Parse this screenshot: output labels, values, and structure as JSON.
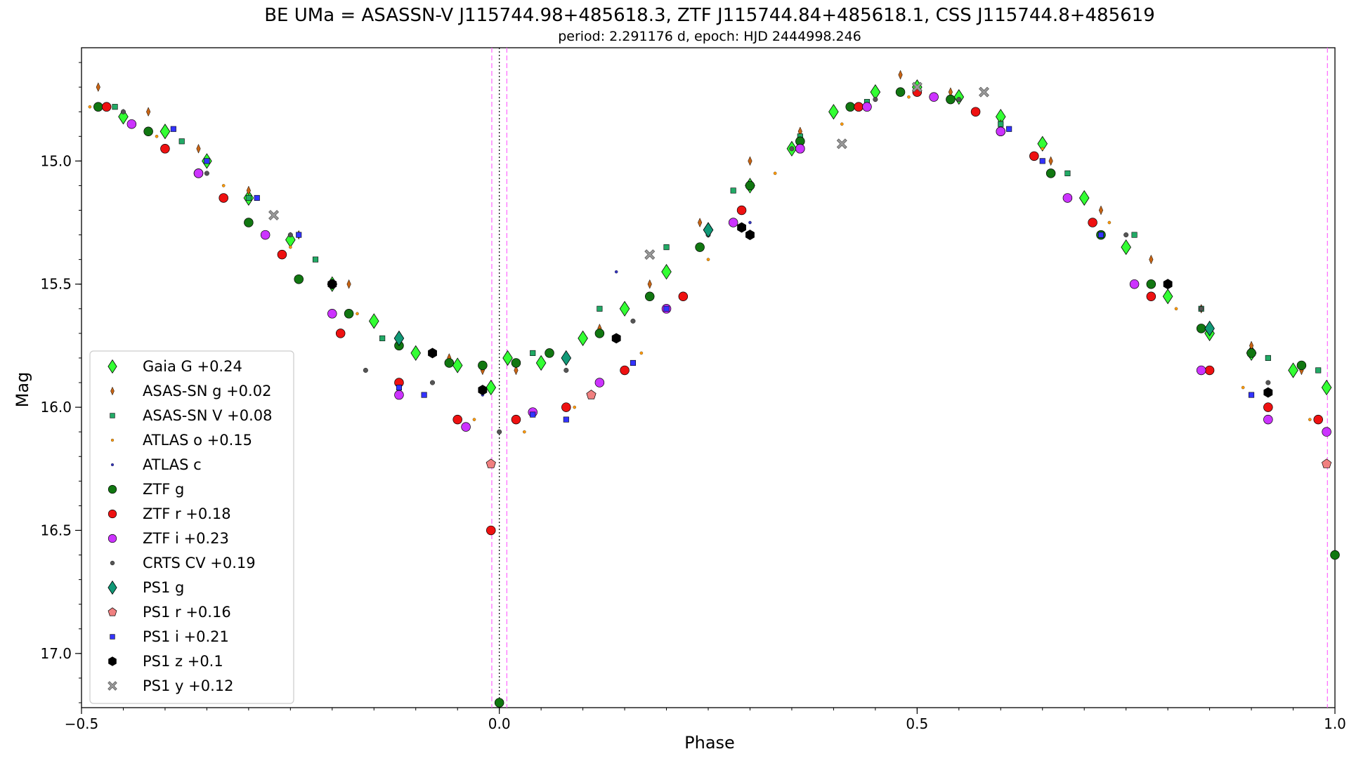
{
  "chart_data": {
    "type": "scatter",
    "title": "BE UMa = ASASSN-V J115744.98+485618.3, ZTF J115744.84+485618.1, CSS J115744.8+485619",
    "subtitle": "period: 2.291176 d, epoch: HJD 2444998.246",
    "xlabel": "Phase",
    "ylabel": "Mag",
    "xlim": [
      -0.5,
      1.0
    ],
    "ylim": [
      17.22,
      14.54
    ],
    "y_inverted": true,
    "x_ticks": [
      {
        "value": -0.5,
        "label": "−0.5"
      },
      {
        "value": 0.0,
        "label": "0.0"
      },
      {
        "value": 0.5,
        "label": "0.5"
      },
      {
        "value": 1.0,
        "label": "1.0"
      }
    ],
    "y_ticks": [
      {
        "value": 15.0,
        "label": "15.0"
      },
      {
        "value": 15.5,
        "label": "15.5"
      },
      {
        "value": 16.0,
        "label": "16.0"
      },
      {
        "value": 16.5,
        "label": "16.5"
      },
      {
        "value": 17.0,
        "label": "17.0"
      }
    ],
    "vertical_lines": [
      {
        "x": 0.0,
        "color": "#000000",
        "style": "dotted"
      },
      {
        "x": -0.009,
        "color": "#ff66ff",
        "style": "dashed"
      },
      {
        "x": 0.009,
        "color": "#ff66ff",
        "style": "dashed"
      },
      {
        "x": 0.991,
        "color": "#ff66ff",
        "style": "dashed"
      }
    ],
    "grid": false,
    "legend_position": "lower-left",
    "series": [
      {
        "name": "Gaia G +0.24",
        "marker": "diamond",
        "color": "#33ff33",
        "x": [
          -0.45,
          -0.4,
          -0.35,
          -0.3,
          -0.25,
          -0.2,
          -0.15,
          -0.1,
          -0.05,
          -0.01,
          0.01,
          0.05,
          0.1,
          0.15,
          0.2,
          0.25,
          0.3,
          0.35,
          0.4,
          0.45,
          0.5,
          0.55,
          0.6,
          0.65,
          0.7,
          0.75,
          0.8,
          0.85,
          0.9,
          0.95,
          0.99
        ],
        "y": [
          14.82,
          14.88,
          15.0,
          15.15,
          15.32,
          15.5,
          15.65,
          15.78,
          15.83,
          15.92,
          15.8,
          15.82,
          15.72,
          15.6,
          15.45,
          15.28,
          15.1,
          14.95,
          14.8,
          14.72,
          14.7,
          14.74,
          14.82,
          14.93,
          15.15,
          15.35,
          15.55,
          15.7,
          15.78,
          15.85,
          15.92
        ]
      },
      {
        "name": "ASAS-SN g +0.02",
        "marker": "thin-diamond",
        "color": "#c86414",
        "x": [
          -0.48,
          -0.42,
          -0.36,
          -0.3,
          -0.24,
          -0.18,
          -0.12,
          -0.06,
          -0.02,
          0.02,
          0.06,
          0.12,
          0.18,
          0.24,
          0.3,
          0.36,
          0.42,
          0.48,
          0.54,
          0.6,
          0.66,
          0.72,
          0.78,
          0.84,
          0.9,
          0.96
        ],
        "y": [
          14.7,
          14.8,
          14.95,
          15.12,
          15.3,
          15.5,
          15.72,
          15.8,
          15.85,
          15.85,
          15.78,
          15.68,
          15.5,
          15.25,
          15.0,
          14.88,
          14.78,
          14.65,
          14.72,
          14.85,
          15.0,
          15.2,
          15.4,
          15.6,
          15.75,
          15.85
        ]
      },
      {
        "name": "ASAS-SN V +0.08",
        "marker": "square",
        "color": "#22aa66",
        "x": [
          -0.46,
          -0.38,
          -0.3,
          -0.22,
          -0.14,
          -0.06,
          0.04,
          0.12,
          0.2,
          0.28,
          0.36,
          0.44,
          0.52,
          0.6,
          0.68,
          0.76,
          0.84,
          0.92,
          0.98
        ],
        "y": [
          14.78,
          14.92,
          15.15,
          15.4,
          15.72,
          15.82,
          15.78,
          15.6,
          15.35,
          15.12,
          14.9,
          14.76,
          14.74,
          14.85,
          15.05,
          15.3,
          15.6,
          15.8,
          15.85
        ]
      },
      {
        "name": "ATLAS o +0.15",
        "marker": "point",
        "color": "#ff9900",
        "x": [
          -0.49,
          -0.41,
          -0.33,
          -0.25,
          -0.17,
          -0.09,
          -0.03,
          0.03,
          0.09,
          0.17,
          0.25,
          0.33,
          0.41,
          0.49,
          0.57,
          0.65,
          0.73,
          0.81,
          0.89,
          0.97
        ],
        "y": [
          14.78,
          14.9,
          15.1,
          15.35,
          15.62,
          15.95,
          16.05,
          16.1,
          16.0,
          15.78,
          15.4,
          15.05,
          14.85,
          14.74,
          14.8,
          14.95,
          15.25,
          15.6,
          15.92,
          16.05
        ]
      },
      {
        "name": "ATLAS c",
        "marker": "point",
        "color": "#3333bb",
        "x": [
          -0.02,
          0.14,
          0.3
        ],
        "y": [
          15.95,
          15.45,
          15.25
        ]
      },
      {
        "name": "ZTF g",
        "marker": "circle",
        "color": "#117711",
        "x": [
          -0.48,
          -0.42,
          -0.36,
          -0.3,
          -0.24,
          -0.18,
          -0.12,
          -0.06,
          -0.02,
          0.0,
          0.02,
          0.06,
          0.12,
          0.18,
          0.24,
          0.3,
          0.36,
          0.42,
          0.48,
          0.54,
          0.6,
          0.66,
          0.72,
          0.78,
          0.84,
          0.9,
          0.96,
          1.0
        ],
        "y": [
          14.78,
          14.88,
          15.05,
          15.25,
          15.48,
          15.62,
          15.75,
          15.82,
          15.83,
          17.2,
          15.82,
          15.78,
          15.7,
          15.55,
          15.35,
          15.1,
          14.92,
          14.78,
          14.72,
          14.75,
          14.88,
          15.05,
          15.3,
          15.5,
          15.68,
          15.78,
          15.83,
          16.6
        ]
      },
      {
        "name": "ZTF r +0.18",
        "marker": "circle",
        "color": "#ee1111",
        "x": [
          -0.47,
          -0.4,
          -0.33,
          -0.26,
          -0.19,
          -0.12,
          -0.05,
          -0.01,
          0.02,
          0.08,
          0.15,
          0.22,
          0.29,
          0.36,
          0.43,
          0.5,
          0.57,
          0.64,
          0.71,
          0.78,
          0.85,
          0.92,
          0.98
        ],
        "y": [
          14.78,
          14.95,
          15.15,
          15.38,
          15.7,
          15.9,
          16.05,
          16.5,
          16.05,
          16.0,
          15.85,
          15.55,
          15.2,
          14.95,
          14.78,
          14.72,
          14.8,
          14.98,
          15.25,
          15.55,
          15.85,
          16.0,
          16.05
        ]
      },
      {
        "name": "ZTF i +0.23",
        "marker": "circle",
        "color": "#cc33ff",
        "x": [
          -0.44,
          -0.36,
          -0.28,
          -0.2,
          -0.12,
          -0.04,
          0.04,
          0.12,
          0.2,
          0.28,
          0.36,
          0.44,
          0.52,
          0.6,
          0.68,
          0.76,
          0.84,
          0.92,
          0.99
        ],
        "y": [
          14.85,
          15.05,
          15.3,
          15.62,
          15.95,
          16.08,
          16.02,
          15.9,
          15.6,
          15.25,
          14.95,
          14.78,
          14.74,
          14.88,
          15.15,
          15.5,
          15.85,
          16.05,
          16.1
        ]
      },
      {
        "name": "CRTS CV +0.19",
        "marker": "small-circle",
        "color": "#555555",
        "x": [
          -0.45,
          -0.35,
          -0.25,
          -0.16,
          -0.08,
          0.0,
          0.08,
          0.16,
          0.25,
          0.35,
          0.45,
          0.55,
          0.65,
          0.75,
          0.84,
          0.92
        ],
        "y": [
          14.8,
          15.05,
          15.3,
          15.85,
          15.9,
          16.1,
          15.85,
          15.65,
          15.3,
          14.95,
          14.75,
          14.75,
          15.0,
          15.3,
          15.6,
          15.9
        ]
      },
      {
        "name": "PS1 g",
        "marker": "diamond",
        "color": "#119977",
        "x": [
          -0.12,
          0.08,
          0.25,
          0.85
        ],
        "y": [
          15.72,
          15.8,
          15.28,
          15.68
        ]
      },
      {
        "name": "PS1 r +0.16",
        "marker": "pentagon",
        "color": "#f08080",
        "x": [
          -0.01,
          0.11,
          0.99
        ],
        "y": [
          16.23,
          15.95,
          16.23
        ]
      },
      {
        "name": "PS1 i +0.21",
        "marker": "square",
        "color": "#3333ff",
        "x": [
          -0.39,
          -0.35,
          -0.29,
          -0.24,
          -0.12,
          -0.09,
          0.04,
          0.08,
          0.16,
          0.2,
          0.61,
          0.65,
          0.72,
          0.9
        ],
        "y": [
          14.87,
          15.0,
          15.15,
          15.3,
          15.92,
          15.95,
          16.03,
          16.05,
          15.82,
          15.6,
          14.87,
          15.0,
          15.3,
          15.95
        ]
      },
      {
        "name": "PS1 z +0.1",
        "marker": "hexagon",
        "color": "#000000",
        "x": [
          -0.2,
          -0.08,
          -0.02,
          0.14,
          0.29,
          0.3,
          0.8,
          0.92
        ],
        "y": [
          15.5,
          15.78,
          15.93,
          15.72,
          15.27,
          15.3,
          15.5,
          15.94
        ]
      },
      {
        "name": "PS1 y +0.12",
        "marker": "x-filled",
        "color": "#999999",
        "x": [
          -0.27,
          0.18,
          0.41,
          0.5,
          0.58
        ],
        "y": [
          15.22,
          15.38,
          14.93,
          14.7,
          14.72
        ]
      }
    ]
  }
}
